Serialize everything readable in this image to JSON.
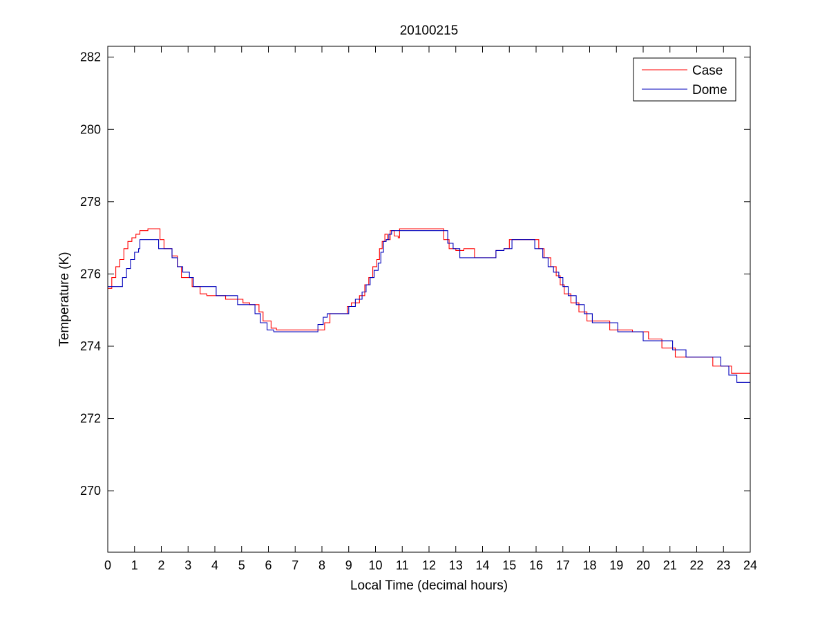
{
  "chart_data": {
    "type": "line",
    "title": "20100215",
    "xlabel": "Local Time (decimal hours)",
    "ylabel": "Temperature (K)",
    "xlim": [
      0,
      24
    ],
    "ylim": [
      268.3,
      282.3
    ],
    "xticks": [
      0,
      1,
      2,
      3,
      4,
      5,
      6,
      7,
      8,
      9,
      10,
      11,
      12,
      13,
      14,
      15,
      16,
      17,
      18,
      19,
      20,
      21,
      22,
      23,
      24
    ],
    "yticks": [
      270,
      272,
      274,
      276,
      278,
      280,
      282
    ],
    "grid": false,
    "legend_position": "top-right",
    "step": true,
    "series": [
      {
        "name": "Case",
        "color": "#ff0000",
        "x": [
          0,
          0.15,
          0.3,
          0.45,
          0.6,
          0.75,
          0.9,
          1.05,
          1.2,
          1.35,
          1.5,
          1.95,
          2.1,
          2.4,
          2.6,
          2.75,
          2.95,
          3.15,
          3.45,
          3.7,
          4.3,
          4.4,
          5.05,
          5.3,
          5.65,
          5.8,
          6.1,
          6.3,
          7.9,
          8.1,
          8.3,
          8.95,
          9.1,
          9.4,
          9.6,
          9.75,
          9.9,
          10.05,
          10.15,
          10.25,
          10.35,
          10.45,
          10.55,
          10.7,
          10.85,
          10.9,
          12.55,
          12.75,
          13.0,
          13.3,
          13.7,
          14.0,
          14.5,
          14.8,
          15.0,
          16.1,
          16.3,
          16.55,
          16.75,
          16.9,
          17.05,
          17.3,
          17.6,
          17.9,
          18.3,
          18.75,
          19.1,
          19.6,
          20.2,
          20.7,
          21.2,
          21.6,
          22.1,
          22.6,
          22.8,
          23.3
        ],
        "y": [
          275.6,
          275.9,
          276.2,
          276.4,
          276.7,
          276.9,
          277.0,
          277.1,
          277.2,
          277.2,
          277.25,
          276.95,
          276.7,
          276.5,
          276.2,
          275.9,
          275.9,
          275.65,
          275.45,
          275.4,
          275.4,
          275.3,
          275.2,
          275.15,
          274.95,
          274.7,
          274.5,
          274.45,
          274.45,
          274.65,
          274.9,
          275.1,
          275.2,
          275.4,
          275.7,
          275.9,
          276.2,
          276.4,
          276.7,
          276.9,
          277.1,
          276.95,
          277.2,
          277.05,
          277.0,
          277.25,
          276.95,
          276.7,
          276.65,
          276.7,
          276.45,
          276.45,
          276.65,
          276.7,
          276.95,
          276.7,
          276.45,
          276.2,
          275.95,
          275.7,
          275.45,
          275.2,
          274.95,
          274.7,
          274.7,
          274.45,
          274.45,
          274.4,
          274.2,
          273.95,
          273.7,
          273.7,
          273.7,
          273.45,
          273.45,
          273.25
        ]
      },
      {
        "name": "Dome",
        "color": "#0000bb",
        "x": [
          0,
          0.4,
          0.55,
          0.7,
          0.85,
          1.0,
          1.15,
          1.2,
          1.9,
          2.2,
          2.4,
          2.6,
          2.8,
          3.05,
          3.2,
          3.45,
          4.05,
          4.6,
          4.85,
          5.3,
          5.5,
          5.7,
          5.95,
          6.2,
          6.5,
          7.85,
          8.05,
          8.2,
          8.8,
          9.0,
          9.25,
          9.5,
          9.65,
          9.8,
          9.95,
          10.1,
          10.2,
          10.3,
          10.4,
          10.5,
          10.6,
          10.75,
          12.7,
          12.9,
          13.15,
          13.45,
          14.0,
          14.5,
          14.8,
          15.1,
          15.95,
          16.25,
          16.45,
          16.65,
          16.85,
          17.0,
          17.2,
          17.5,
          17.8,
          18.1,
          18.6,
          19.05,
          19.5,
          20.0,
          20.6,
          21.1,
          21.6,
          22.2,
          22.9,
          23.2,
          23.5
        ],
        "y": [
          275.65,
          275.65,
          275.9,
          276.15,
          276.4,
          276.6,
          276.7,
          276.95,
          276.7,
          276.7,
          276.45,
          276.2,
          276.05,
          275.9,
          275.65,
          275.65,
          275.4,
          275.4,
          275.15,
          275.15,
          274.9,
          274.65,
          274.45,
          274.4,
          274.4,
          274.6,
          274.8,
          274.9,
          274.9,
          275.1,
          275.3,
          275.5,
          275.7,
          275.9,
          276.1,
          276.3,
          276.6,
          276.9,
          276.95,
          277.1,
          277.2,
          277.2,
          276.85,
          276.7,
          276.45,
          276.45,
          276.45,
          276.65,
          276.7,
          276.95,
          276.7,
          276.45,
          276.2,
          276.05,
          275.9,
          275.65,
          275.4,
          275.15,
          274.9,
          274.65,
          274.65,
          274.4,
          274.4,
          274.15,
          274.15,
          273.9,
          273.7,
          273.7,
          273.45,
          273.2,
          273.0
        ]
      }
    ]
  }
}
